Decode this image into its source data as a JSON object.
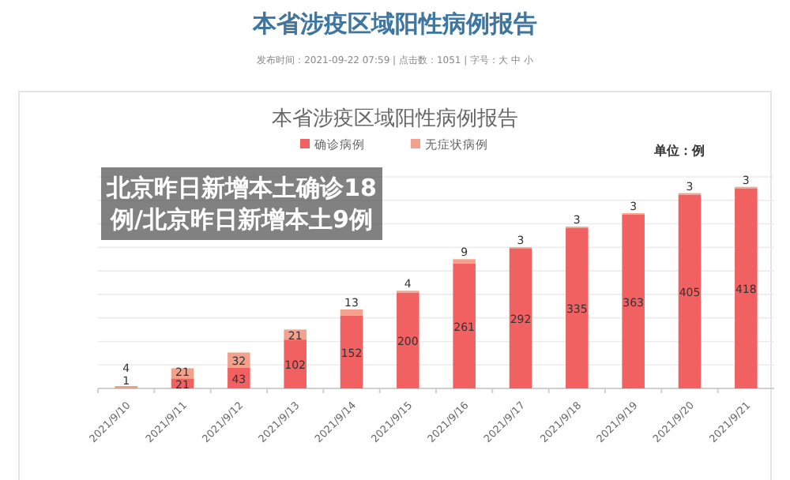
{
  "chart_data": {
    "type": "bar",
    "stacked": true,
    "title": "本省涉疫区域阳性病例报告",
    "subtitle": "本省涉疫区域阳性病例报告",
    "annotations": [
      "发布时间：2021-09-22 07:59 | 点击数：1051 | 字号：大 中 小",
      "单位：例",
      "北京昨日新增本土确诊18例/北京昨日新增本土9例"
    ],
    "categories": [
      "2021/9/10",
      "2021/9/11",
      "2021/9/12",
      "2021/9/13",
      "2021/9/14",
      "2021/9/15",
      "2021/9/16",
      "2021/9/17",
      "2021/9/18",
      "2021/9/19",
      "2021/9/20",
      "2021/9/21"
    ],
    "series": [
      {
        "name": "确诊病例",
        "color": "#f26161",
        "values": [
          1,
          21,
          43,
          102,
          152,
          200,
          261,
          292,
          335,
          363,
          405,
          418
        ]
      },
      {
        "name": "无症状病例",
        "color": "#f3a08c",
        "values": [
          4,
          21,
          32,
          21,
          13,
          4,
          9,
          3,
          3,
          3,
          3,
          3
        ]
      }
    ],
    "data_labels": true,
    "legend": "top",
    "grid": "y"
  }
}
